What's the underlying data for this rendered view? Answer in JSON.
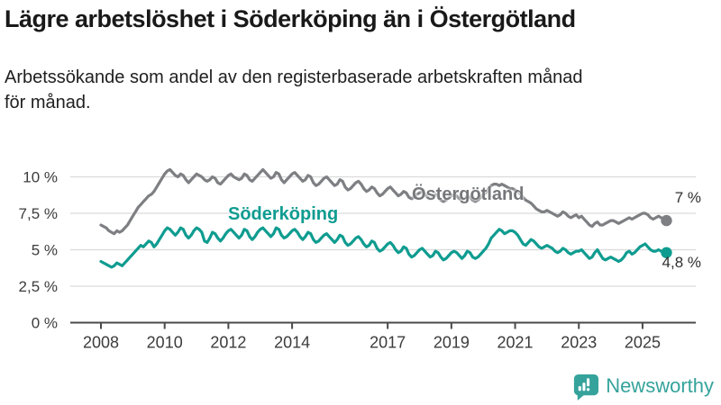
{
  "header": {
    "title": "Lägre arbetslöshet i Söderköping än i Östergötland",
    "subtitle": "Arbetssökande som andel av den registerbaserade arbetskraften månad för månad."
  },
  "brand": {
    "name": "Newsworthy",
    "color": "#35a39b",
    "icon": "bar-chart-speech-bubble-icon"
  },
  "chart_data": {
    "type": "line",
    "title": "Lägre arbetslöshet i Söderköping än i Östergötland",
    "subtitle": "Arbetssökande som andel av den registerbaserade arbetskraften månad för månad.",
    "unit": "percent of register-based labour force",
    "frequency": "monthly",
    "start": "2008-01",
    "end": "2025-10",
    "grid": "horizontal",
    "legend_position": "inline-labels",
    "ylim": [
      0,
      11.5
    ],
    "x_tick_years": [
      2008,
      2010,
      2012,
      2014,
      2017,
      2019,
      2021,
      2023,
      2025
    ],
    "y_ticks": [
      {
        "value": 0,
        "label": "0 %"
      },
      {
        "value": 2.5,
        "label": "2,5 %"
      },
      {
        "value": 5,
        "label": "5 %"
      },
      {
        "value": 7.5,
        "label": "7,5 %"
      },
      {
        "value": 10,
        "label": "10 %"
      }
    ],
    "series": [
      {
        "name": "Söderköping",
        "color": "#0f9c90",
        "end_label": "4,8 %",
        "last_value": 4.8,
        "values": [
          4.2,
          4.1,
          4.0,
          3.9,
          3.8,
          3.9,
          4.1,
          4.0,
          3.9,
          4.1,
          4.3,
          4.5,
          4.7,
          4.9,
          5.1,
          5.3,
          5.2,
          5.4,
          5.6,
          5.5,
          5.2,
          5.4,
          5.7,
          6.0,
          6.3,
          6.5,
          6.4,
          6.2,
          6.0,
          6.2,
          6.5,
          6.4,
          6.0,
          5.8,
          6.0,
          6.3,
          6.5,
          6.4,
          6.2,
          5.6,
          5.5,
          5.8,
          6.2,
          6.1,
          5.8,
          5.6,
          5.8,
          6.1,
          6.3,
          6.4,
          6.2,
          6.0,
          5.8,
          6.0,
          6.4,
          6.3,
          5.9,
          5.7,
          5.9,
          6.2,
          6.4,
          6.5,
          6.3,
          6.1,
          5.9,
          6.1,
          6.5,
          6.4,
          6.0,
          5.8,
          5.9,
          6.1,
          6.3,
          6.4,
          6.2,
          5.9,
          5.7,
          5.9,
          6.2,
          6.1,
          5.7,
          5.5,
          5.6,
          5.8,
          6.0,
          6.1,
          5.9,
          5.7,
          5.5,
          5.7,
          6.0,
          5.9,
          5.5,
          5.3,
          5.4,
          5.6,
          5.8,
          5.9,
          5.7,
          5.4,
          5.2,
          5.3,
          5.6,
          5.5,
          5.1,
          4.9,
          5.0,
          5.2,
          5.4,
          5.5,
          5.3,
          5.0,
          4.8,
          4.9,
          5.2,
          5.1,
          4.7,
          4.5,
          4.6,
          4.8,
          5.0,
          5.1,
          4.9,
          4.7,
          4.5,
          4.6,
          4.9,
          4.8,
          4.5,
          4.3,
          4.4,
          4.6,
          4.8,
          4.9,
          4.8,
          4.6,
          4.4,
          4.6,
          4.9,
          4.8,
          4.5,
          4.4,
          4.5,
          4.7,
          4.9,
          5.1,
          5.4,
          5.8,
          6.0,
          6.2,
          6.4,
          6.3,
          6.1,
          6.2,
          6.3,
          6.3,
          6.2,
          6.0,
          5.7,
          5.4,
          5.3,
          5.5,
          5.7,
          5.6,
          5.4,
          5.2,
          5.1,
          5.2,
          5.3,
          5.2,
          5.1,
          4.9,
          4.8,
          4.9,
          5.1,
          5.0,
          4.8,
          4.7,
          4.8,
          4.9,
          4.9,
          5.0,
          4.8,
          4.6,
          4.4,
          4.5,
          4.8,
          5.0,
          4.7,
          4.4,
          4.3,
          4.4,
          4.5,
          4.4,
          4.3,
          4.2,
          4.3,
          4.5,
          4.8,
          4.9,
          4.7,
          4.8,
          5.0,
          5.2,
          5.3,
          5.4,
          5.2,
          5.0,
          4.9,
          4.9,
          5.0,
          4.9,
          4.8,
          4.8
        ]
      },
      {
        "name": "Östergötland",
        "color": "#7e7f83",
        "end_label": "7 %",
        "last_value": 7.0,
        "values": [
          6.7,
          6.6,
          6.5,
          6.3,
          6.2,
          6.1,
          6.3,
          6.2,
          6.3,
          6.5,
          6.7,
          7.0,
          7.3,
          7.6,
          7.9,
          8.1,
          8.3,
          8.5,
          8.7,
          8.8,
          9.0,
          9.3,
          9.6,
          9.9,
          10.2,
          10.4,
          10.5,
          10.3,
          10.1,
          10.0,
          10.2,
          10.1,
          9.8,
          9.6,
          9.8,
          10.0,
          10.2,
          10.1,
          10.0,
          9.8,
          9.7,
          9.8,
          10.0,
          9.9,
          9.6,
          9.5,
          9.7,
          9.9,
          10.1,
          10.2,
          10.0,
          9.9,
          9.8,
          9.9,
          10.2,
          10.1,
          9.8,
          9.7,
          9.9,
          10.1,
          10.3,
          10.5,
          10.3,
          10.1,
          9.9,
          10.0,
          10.3,
          10.2,
          9.8,
          9.6,
          9.8,
          10.0,
          10.2,
          10.3,
          10.1,
          9.9,
          9.7,
          9.8,
          10.1,
          10.0,
          9.6,
          9.4,
          9.5,
          9.7,
          9.9,
          10.0,
          9.8,
          9.6,
          9.4,
          9.5,
          9.8,
          9.7,
          9.3,
          9.1,
          9.2,
          9.4,
          9.6,
          9.7,
          9.5,
          9.2,
          9.0,
          9.1,
          9.3,
          9.2,
          8.9,
          8.7,
          8.8,
          9.0,
          9.2,
          9.3,
          9.1,
          8.9,
          8.7,
          8.8,
          9.0,
          8.9,
          8.6,
          8.5,
          8.6,
          8.8,
          8.9,
          9.0,
          8.8,
          8.6,
          8.5,
          8.6,
          8.8,
          8.7,
          8.4,
          8.3,
          8.4,
          8.6,
          8.7,
          8.8,
          8.7,
          8.5,
          8.4,
          8.5,
          8.7,
          8.6,
          8.4,
          8.3,
          8.4,
          8.6,
          8.8,
          8.9,
          9.2,
          9.4,
          9.5,
          9.5,
          9.4,
          9.5,
          9.4,
          9.3,
          9.2,
          9.2,
          9.1,
          9.0,
          8.8,
          8.6,
          8.4,
          8.3,
          8.2,
          8.0,
          7.8,
          7.7,
          7.6,
          7.6,
          7.7,
          7.6,
          7.5,
          7.4,
          7.3,
          7.4,
          7.6,
          7.5,
          7.3,
          7.2,
          7.3,
          7.4,
          7.2,
          7.3,
          7.1,
          6.9,
          6.7,
          6.6,
          6.8,
          6.9,
          6.7,
          6.7,
          6.8,
          6.9,
          7.0,
          7.0,
          6.9,
          6.8,
          6.9,
          7.0,
          7.1,
          7.2,
          7.1,
          7.2,
          7.3,
          7.4,
          7.5,
          7.5,
          7.4,
          7.2,
          7.1,
          7.2,
          7.3,
          7.2,
          7.1,
          7.0
        ]
      }
    ]
  }
}
